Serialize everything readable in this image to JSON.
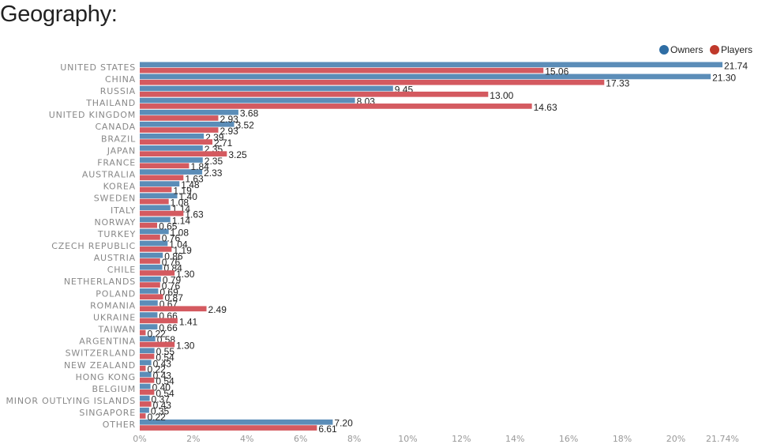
{
  "title": "Geography:",
  "colors": {
    "owners": "#5b8db8",
    "players": "#d45a60",
    "owners_legend": "#2e6da4",
    "players_legend": "#c0392b"
  },
  "chart_data": {
    "type": "bar",
    "orientation": "horizontal",
    "legend_position": "top-right",
    "categories": [
      "UNITED STATES",
      "CHINA",
      "RUSSIA",
      "THAILAND",
      "UNITED KINGDOM",
      "CANADA",
      "BRAZIL",
      "JAPAN",
      "FRANCE",
      "AUSTRALIA",
      "KOREA",
      "SWEDEN",
      "ITALY",
      "NORWAY",
      "TURKEY",
      "CZECH REPUBLIC",
      "AUSTRIA",
      "CHILE",
      "NETHERLANDS",
      "POLAND",
      "ROMANIA",
      "UKRAINE",
      "TAIWAN",
      "ARGENTINA",
      "SWITZERLAND",
      "NEW ZEALAND",
      "HONG KONG",
      "BELGIUM",
      "MINOR OUTLYING ISLANDS",
      "SINGAPORE",
      "OTHER"
    ],
    "series": [
      {
        "name": "Owners",
        "values": [
          21.74,
          21.3,
          9.45,
          8.03,
          3.68,
          3.52,
          2.39,
          2.35,
          2.35,
          2.33,
          1.48,
          1.4,
          1.14,
          1.14,
          1.08,
          1.04,
          0.86,
          0.84,
          0.79,
          0.69,
          0.67,
          0.66,
          0.66,
          0.58,
          0.55,
          0.43,
          0.43,
          0.4,
          0.37,
          0.35,
          7.2
        ],
        "labels": [
          "21.74",
          "21.30",
          "9.45",
          "8.03",
          "3.68",
          "3.52",
          "2.39",
          "2.35",
          "2.35",
          "2.33",
          "1.48",
          "1.40",
          "1.14",
          "1.14",
          "1.08",
          "1.04",
          "0.86",
          "0.84",
          "0.79",
          "0.69",
          "0.67",
          "0.66",
          "0.66",
          "0.58",
          "0.55",
          "0.43",
          "0.43",
          "0.40",
          "0.37",
          "0.35",
          "7.20"
        ]
      },
      {
        "name": "Players",
        "values": [
          15.06,
          17.33,
          13.0,
          14.63,
          2.93,
          2.93,
          2.71,
          3.25,
          1.84,
          1.63,
          1.19,
          1.08,
          1.63,
          0.65,
          0.76,
          1.19,
          0.76,
          1.3,
          0.76,
          0.87,
          2.49,
          1.41,
          0.22,
          1.3,
          0.54,
          0.22,
          0.54,
          0.54,
          0.43,
          0.22,
          6.61
        ],
        "labels": [
          "15.06",
          "17.33",
          "13.00",
          "14.63",
          "2.93",
          "2.93",
          "2.71",
          "3.25",
          "1.84",
          "1.63",
          "1.19",
          "1.08",
          "1.63",
          "0.65",
          "0.76",
          "1.19",
          "0.76",
          "1.30",
          "0.76",
          "0.87",
          "2.49",
          "1.41",
          "0.22",
          "1.30",
          "0.54",
          "0.22",
          "0.54",
          "0.54",
          "0.43",
          "0.22",
          "6.61"
        ]
      }
    ],
    "xlim": [
      0,
      21.74
    ],
    "x_ticks": [
      0,
      2,
      4,
      6,
      8,
      10,
      12,
      14,
      16,
      18,
      20,
      21.74
    ],
    "x_tick_labels": [
      "0%",
      "2%",
      "4%",
      "6%",
      "8%",
      "10%",
      "12%",
      "14%",
      "16%",
      "18%",
      "20%",
      "21.74%"
    ],
    "xlabel": "",
    "ylabel": "",
    "grid": false
  }
}
